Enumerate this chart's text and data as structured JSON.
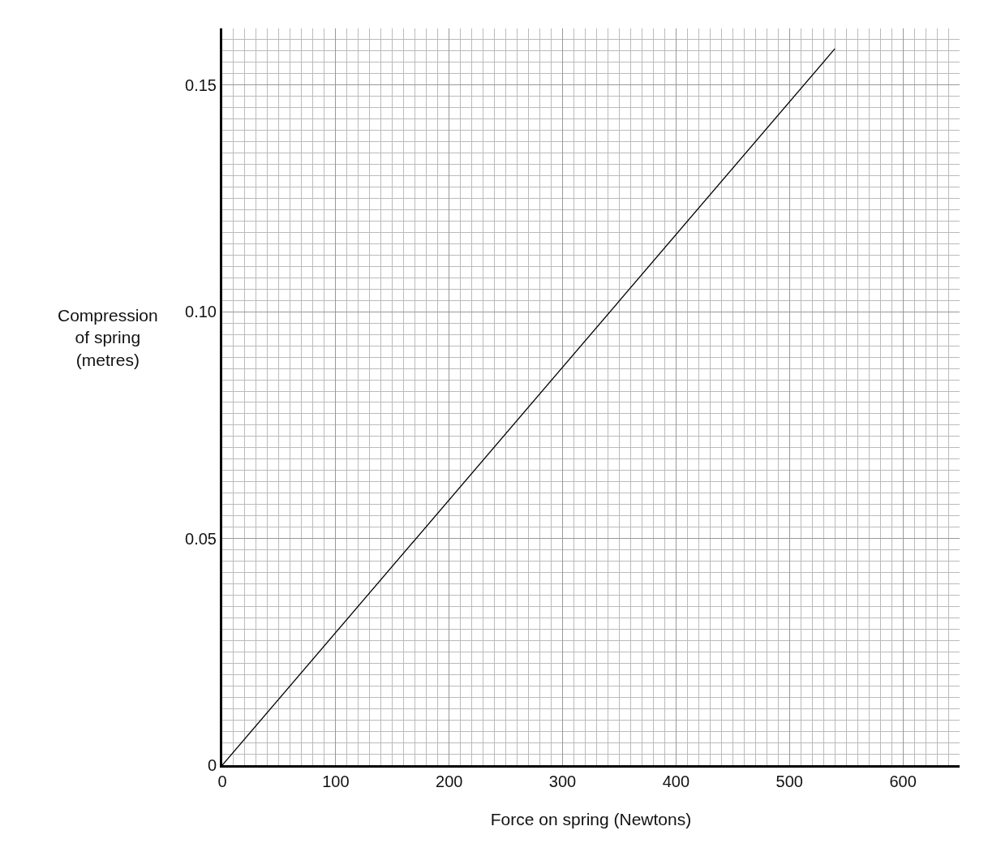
{
  "chart_data": {
    "type": "line",
    "xlabel": "Force on spring (Newtons)",
    "ylabel": "Compression\nof spring\n(metres)",
    "x": [
      0,
      540
    ],
    "series": [
      {
        "color": "#000000",
        "values": [
          0,
          0.158
        ]
      }
    ],
    "xlim": [
      0,
      650
    ],
    "ylim": [
      0,
      0.1625
    ],
    "xticks": [
      0,
      100,
      200,
      300,
      400,
      500,
      600
    ],
    "yticks": [
      0,
      0.05,
      {
        "value": 0.1,
        "label": "0.10"
      },
      0.15
    ],
    "grid": true,
    "marker": "none",
    "line_style": "solid"
  }
}
